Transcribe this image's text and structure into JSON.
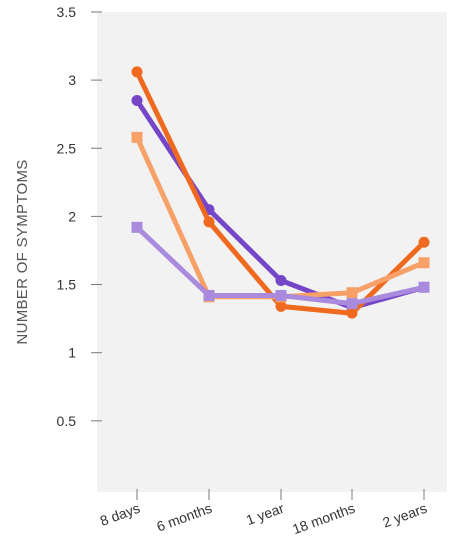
{
  "chart_data": {
    "type": "line",
    "categories": [
      "8 days",
      "6 months",
      "1 year",
      "18 months",
      "2 years"
    ],
    "ylabel": "NUMBER OF SYMPTOMS",
    "xlabel": "",
    "ylim": [
      0,
      3.5
    ],
    "yticks": [
      {
        "value": 0.5,
        "label": "0.5"
      },
      {
        "value": 1,
        "label": "1"
      },
      {
        "value": 1.5,
        "label": "1.5"
      },
      {
        "value": 2,
        "label": "2"
      },
      {
        "value": 2.5,
        "label": "2.5"
      },
      {
        "value": 3,
        "label": "3"
      },
      {
        "value": 3.5,
        "label": "3.5"
      }
    ],
    "grid": false,
    "plot_background": "#f2f2f2",
    "series": [
      {
        "color": "#7646c8",
        "marker": "circle",
        "values": [
          2.85,
          2.05,
          1.53,
          1.33,
          1.48
        ]
      },
      {
        "color": "#ef6a1f",
        "marker": "circle",
        "values": [
          3.06,
          1.96,
          1.34,
          1.29,
          1.81
        ]
      },
      {
        "color": "#f7a067",
        "marker": "square",
        "values": [
          2.58,
          1.41,
          1.41,
          1.44,
          1.66
        ]
      },
      {
        "color": "#a98add",
        "marker": "square",
        "values": [
          1.92,
          1.42,
          1.42,
          1.36,
          1.48
        ]
      }
    ]
  }
}
